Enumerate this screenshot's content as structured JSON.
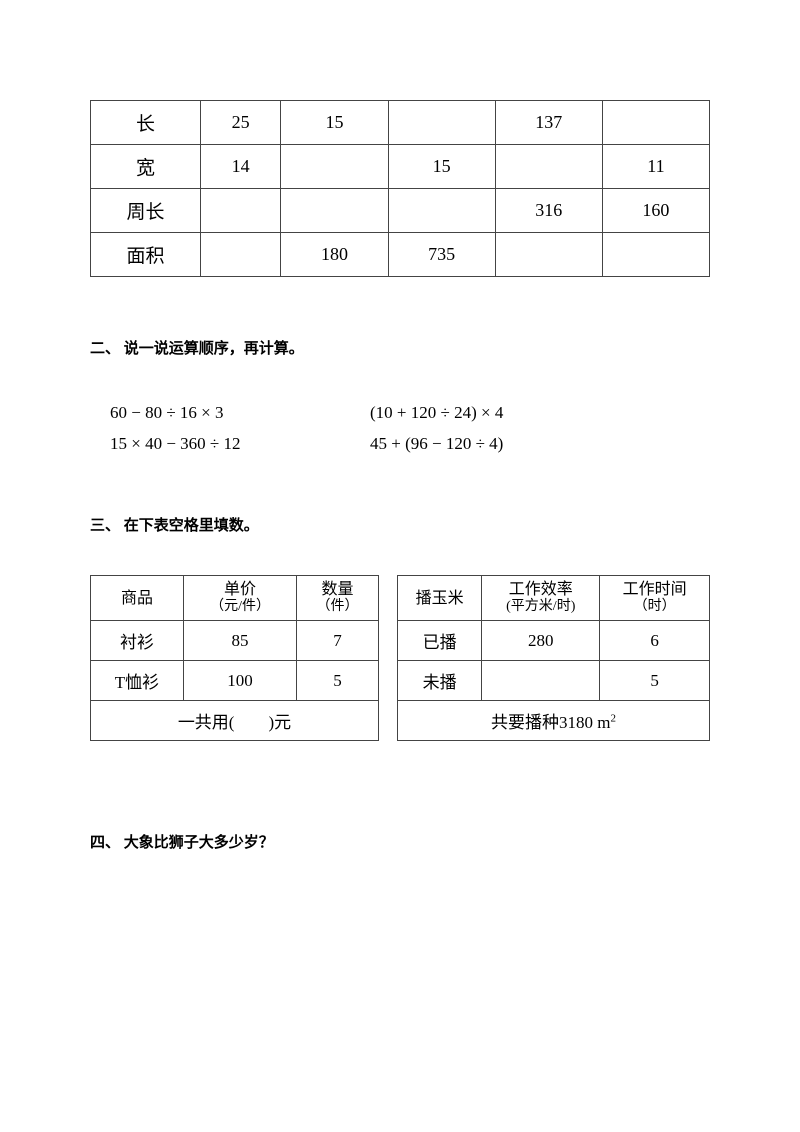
{
  "table1": {
    "row_labels": [
      "长",
      "宽",
      "周长",
      "面积"
    ],
    "cells": {
      "r0c1": "25",
      "r0c2": "15",
      "r0c3": "",
      "r0c4": "137",
      "r0c5": "",
      "r1c1": "14",
      "r1c2": "",
      "r1c3": "15",
      "r1c4": "",
      "r1c5": "11",
      "r2c1": "",
      "r2c2": "",
      "r2c3": "",
      "r2c4": "316",
      "r2c5": "160",
      "r3c1": "",
      "r3c2": "180",
      "r3c3": "735",
      "r3c4": "",
      "r3c5": ""
    }
  },
  "section2": {
    "heading": "二、 说一说运算顺序，再计算。",
    "eq1_left": "60 − 80 ÷ 16 × 3",
    "eq1_right": "(10 + 120 ÷ 24) × 4",
    "eq2_left": "15 × 40 − 360 ÷ 12",
    "eq2_right": "45 + (96 − 120 ÷ 4)"
  },
  "section3": {
    "heading": "三、 在下表空格里填数。",
    "table_left": {
      "h1": "商品",
      "h2_line1": "单价",
      "h2_line2": "（元/件）",
      "h3_line1": "数量",
      "h3_line2": "（件）",
      "r1c1": "衬衫",
      "r1c2": "85",
      "r1c3": "7",
      "r2c1": "T恤衫",
      "r2c2": "100",
      "r2c3": "5",
      "foot": "一共用(　　)元"
    },
    "table_right": {
      "h1": "播玉米",
      "h2_line1": "工作效率",
      "h2_line2": "(平方米/时)",
      "h3_line1": "工作时间",
      "h3_line2": "（时）",
      "r1c1": "已播",
      "r1c2": "280",
      "r1c3": "6",
      "r2c1": "未播",
      "r2c2": "",
      "r2c3": "5",
      "foot_prefix": "共要播种3180 m",
      "foot_sup": "2"
    }
  },
  "section4": {
    "heading": "四、 大象比狮子大多少岁？"
  }
}
